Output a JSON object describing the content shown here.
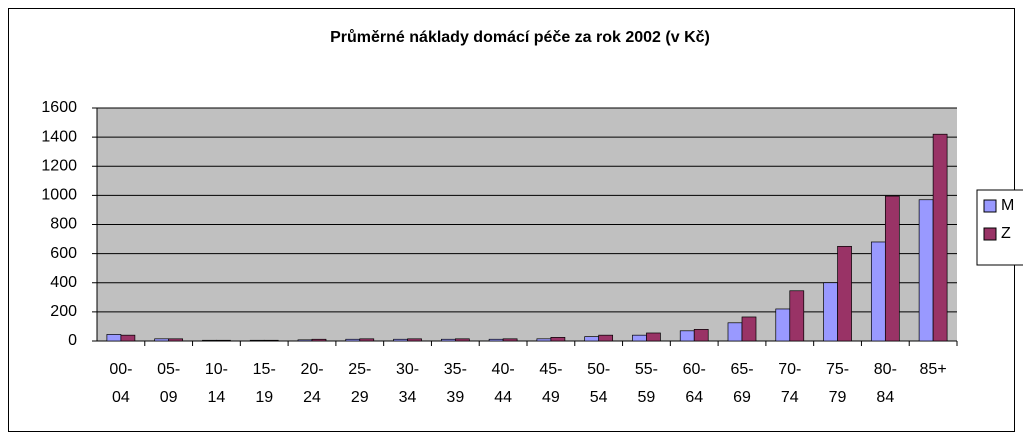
{
  "chart_data": {
    "type": "bar",
    "title": "Průměrné náklady domácí péče za rok 2002 (v Kč)",
    "categories": [
      [
        "00-",
        "04"
      ],
      [
        "05-",
        "09"
      ],
      [
        "10-",
        "14"
      ],
      [
        "15-",
        "19"
      ],
      [
        "20-",
        "24"
      ],
      [
        "25-",
        "29"
      ],
      [
        "30-",
        "34"
      ],
      [
        "35-",
        "39"
      ],
      [
        "40-",
        "44"
      ],
      [
        "45-",
        "49"
      ],
      [
        "50-",
        "54"
      ],
      [
        "55-",
        "59"
      ],
      [
        "60-",
        "64"
      ],
      [
        "65-",
        "69"
      ],
      [
        "70-",
        "74"
      ],
      [
        "75-",
        "79"
      ],
      [
        "80-",
        "84"
      ],
      [
        "85+"
      ]
    ],
    "series": [
      {
        "name": "M",
        "color": "#9999ff",
        "values": [
          45,
          15,
          5,
          5,
          8,
          12,
          12,
          12,
          12,
          15,
          30,
          40,
          70,
          125,
          220,
          400,
          680,
          970
        ]
      },
      {
        "name": "Z",
        "color": "#993366",
        "values": [
          40,
          15,
          5,
          5,
          12,
          15,
          15,
          15,
          15,
          25,
          40,
          55,
          80,
          165,
          345,
          650,
          995,
          1420
        ]
      }
    ],
    "ylim": [
      0,
      1600
    ],
    "yticks": [
      0,
      200,
      400,
      600,
      800,
      1000,
      1200,
      1400,
      1600
    ],
    "grid": true,
    "legend": "right"
  }
}
